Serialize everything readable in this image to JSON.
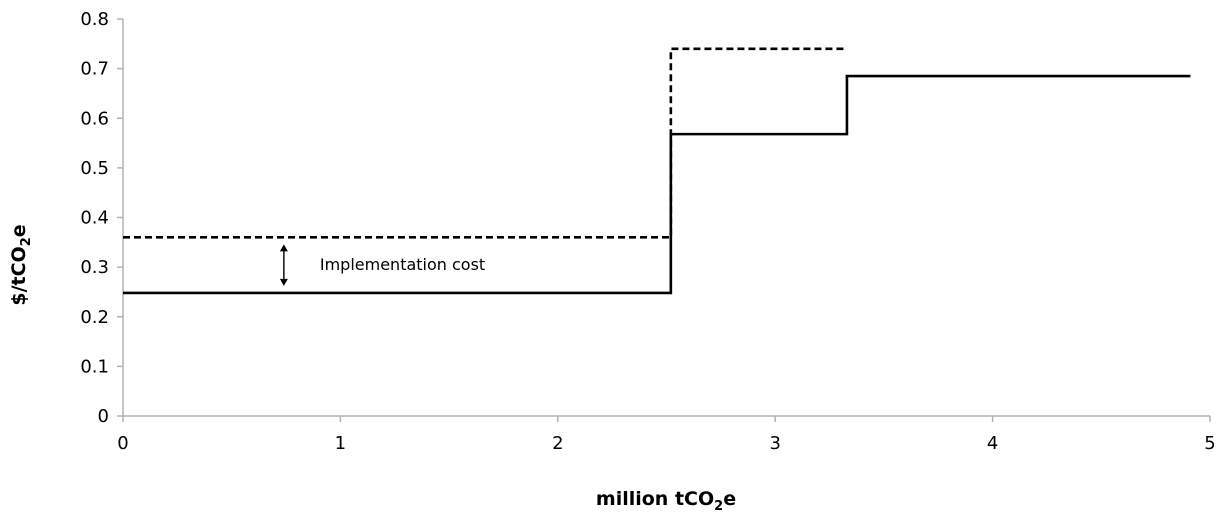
{
  "chart_data": {
    "type": "line",
    "subtype": "step",
    "xlabel": "million tCO2e",
    "xlabel_parts": [
      "million tCO",
      "2",
      "e"
    ],
    "ylabel": "$/tCO2e",
    "ylabel_parts": [
      "$/tCO",
      "2",
      "e"
    ],
    "xlim": [
      0,
      5
    ],
    "ylim": [
      0,
      0.8
    ],
    "xticks": [
      "0",
      "1",
      "2",
      "3",
      "4",
      "5"
    ],
    "yticks": [
      "0",
      "0.1",
      "0.2",
      "0.3",
      "0.4",
      "0.5",
      "0.6",
      "0.7",
      "0.8"
    ],
    "grid": false,
    "series": [
      {
        "style": "solid",
        "x": [
          0,
          2.52,
          2.52,
          3.33,
          3.33,
          4.91
        ],
        "y": [
          0.248,
          0.248,
          0.568,
          0.568,
          0.685,
          0.685
        ]
      },
      {
        "style": "dashed",
        "x": [
          0,
          2.52,
          2.52,
          3.33
        ],
        "y": [
          0.36,
          0.36,
          0.74,
          0.74
        ]
      }
    ],
    "annotations": [
      {
        "text": "Implementation cost",
        "arrow_x": 0.74,
        "arrow_y": [
          0.248,
          0.36
        ]
      }
    ]
  }
}
